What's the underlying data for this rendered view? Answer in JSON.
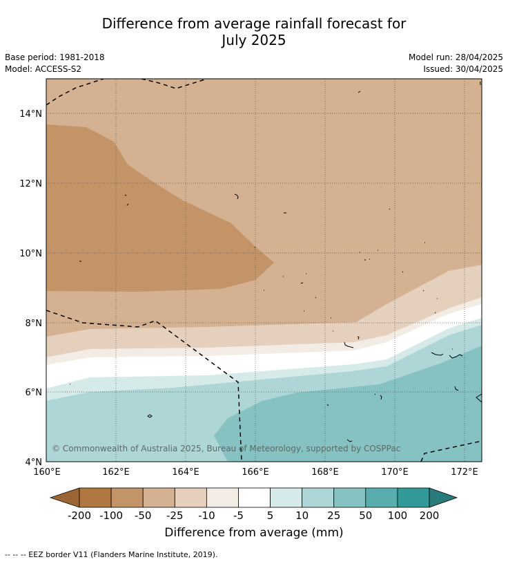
{
  "title": {
    "line1": "Difference from average rainfall forecast for",
    "line2": "July 2025"
  },
  "meta": {
    "base_period": "Base period: 1981-2018",
    "model": "Model: ACCESS-S2",
    "model_run": "Model run: 28/04/2025",
    "issued": "Issued: 30/04/2025"
  },
  "map": {
    "lat_labels": [
      "14°N",
      "12°N",
      "10°N",
      "8°N",
      "6°N",
      "4°N"
    ],
    "lon_labels": [
      "160°E",
      "162°E",
      "164°E",
      "166°E",
      "168°E",
      "170°E",
      "172°E"
    ],
    "copyright": "© Commonwealth of Australia 2025, Bureau of Meteorology, supported by COSPPac",
    "grid": true
  },
  "colorbar": {
    "title": "Difference from average (mm)",
    "labels": [
      "-200",
      "-100",
      "-50",
      "-25",
      "-10",
      "-5",
      "5",
      "10",
      "25",
      "50",
      "100",
      "200"
    ],
    "colors": [
      "#9c6533",
      "#b07840",
      "#c29468",
      "#d3b191",
      "#e4d0bd",
      "#f2ece5",
      "#ffffff",
      "#d6eaea",
      "#aed6d6",
      "#86c2c2",
      "#5aadad",
      "#339999",
      "#2a7b7b"
    ]
  },
  "footnote": "--  --  -- EEZ border V11 (Flanders Marine Institute, 2019)."
}
